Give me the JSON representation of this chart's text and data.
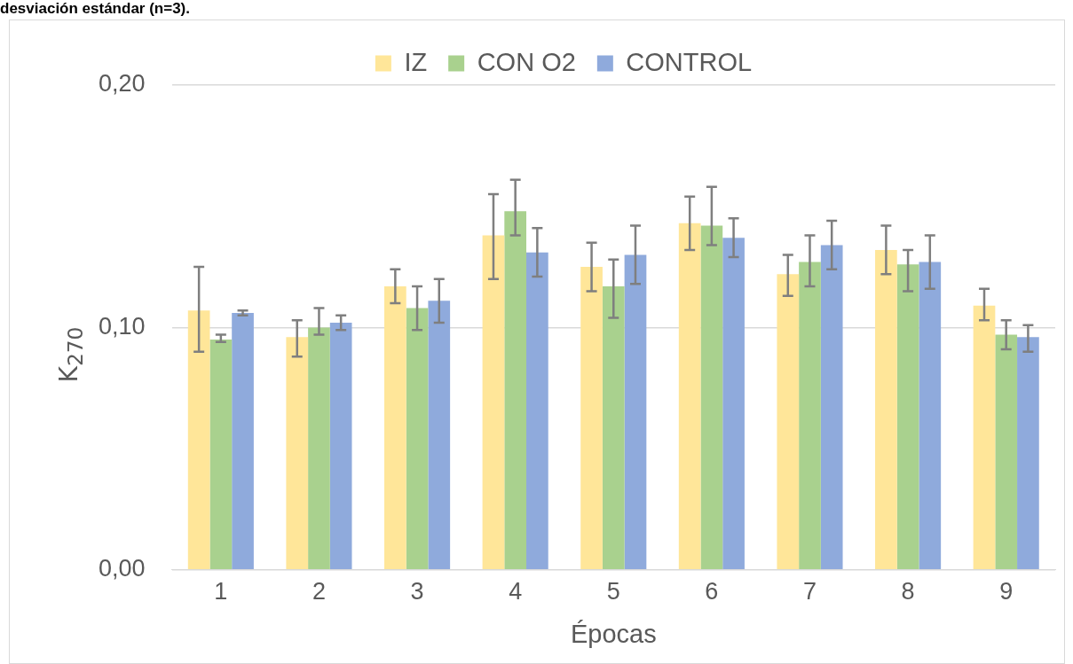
{
  "chart_data": {
    "type": "bar",
    "title": "desviación estándar (n=3).",
    "xlabel": "Épocas",
    "ylabel": "K$_{270}$",
    "categories": [
      "1",
      "2",
      "3",
      "4",
      "5",
      "6",
      "7",
      "8",
      "9"
    ],
    "series": [
      {
        "name": "IZ",
        "color": "#ffe699",
        "values": [
          0.107,
          0.096,
          0.117,
          0.138,
          0.125,
          0.143,
          0.122,
          0.132,
          0.109
        ],
        "errors": [
          [
            0.09,
            0.125
          ],
          [
            0.088,
            0.103
          ],
          [
            0.11,
            0.124
          ],
          [
            0.12,
            0.155
          ],
          [
            0.115,
            0.135
          ],
          [
            0.132,
            0.154
          ],
          [
            0.113,
            0.13
          ],
          [
            0.122,
            0.142
          ],
          [
            0.103,
            0.116
          ]
        ]
      },
      {
        "name": "CON O2",
        "color": "#a9d18e",
        "values": [
          0.095,
          0.1,
          0.108,
          0.148,
          0.117,
          0.142,
          0.127,
          0.126,
          0.097
        ],
        "errors": [
          [
            0.094,
            0.097
          ],
          [
            0.097,
            0.108
          ],
          [
            0.099,
            0.117
          ],
          [
            0.138,
            0.161
          ],
          [
            0.104,
            0.128
          ],
          [
            0.134,
            0.158
          ],
          [
            0.117,
            0.138
          ],
          [
            0.115,
            0.132
          ],
          [
            0.091,
            0.103
          ]
        ]
      },
      {
        "name": "CONTROL",
        "color": "#8faadc",
        "values": [
          0.106,
          0.102,
          0.111,
          0.131,
          0.13,
          0.137,
          0.134,
          0.127,
          0.096
        ],
        "errors": [
          [
            0.105,
            0.107
          ],
          [
            0.099,
            0.105
          ],
          [
            0.102,
            0.12
          ],
          [
            0.121,
            0.141
          ],
          [
            0.118,
            0.142
          ],
          [
            0.129,
            0.145
          ],
          [
            0.124,
            0.144
          ],
          [
            0.116,
            0.138
          ],
          [
            0.09,
            0.101
          ]
        ]
      }
    ],
    "ylim": [
      0,
      0.2
    ],
    "yticks": [
      {
        "value": 0,
        "label": "0,00"
      },
      {
        "value": 0.1,
        "label": "0,10"
      },
      {
        "value": 0.2,
        "label": "0,20"
      }
    ],
    "grid": "y",
    "legend": "top"
  }
}
